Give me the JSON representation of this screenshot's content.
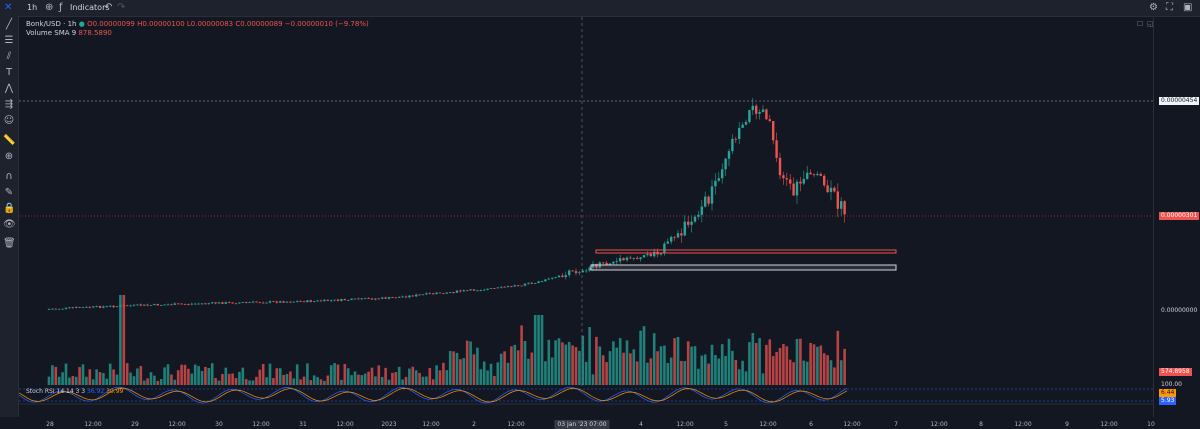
{
  "toolbar": {
    "interval": "1h",
    "indicators_label": "Indicators"
  },
  "legend": {
    "symbol": "Bonk/USD",
    "interval": "1h",
    "ohlc": "O0.00000099  H0.00000100  L0.00000083  C0.00000089  −0.00000010 (−9.78%)",
    "volume_label": "Volume SMA 9",
    "volume_value": "878.5890"
  },
  "rsi": {
    "label": "Stoch RSI 14 14 3 3",
    "k": "36.92",
    "d": "30.99"
  },
  "price_axis": {
    "high_label": "0.00000454",
    "current_label": "0.00000301",
    "zero_label": "0.00000000",
    "volume_label": "574.8958",
    "rsi_top": "100.00",
    "rsi_k": "6.44",
    "rsi_d": "5.93"
  },
  "time_axis": {
    "labels": [
      "28",
      "12:00",
      "29",
      "12:00",
      "30",
      "12:00",
      "31",
      "12:00",
      "2023",
      "12:00",
      "2",
      "12:00",
      "03 Jan '23  07:00",
      "4",
      "12:00",
      "5",
      "12:00",
      "6",
      "12:00",
      "7",
      "12:00",
      "8",
      "12:00",
      "9",
      "12:00",
      "10"
    ]
  },
  "colors": {
    "up": "#26a69a",
    "down": "#ef5350",
    "background": "#131722"
  },
  "chart_data": {
    "type": "candlestick",
    "symbol": "Bonk/USD",
    "interval": "1h",
    "last_close": 8.9e-07,
    "marked_high": 4.54e-06,
    "marked_current": 3.01e-06,
    "volume_last": 574.8958,
    "volume_sma9": 878.589,
    "stoch_rsi": {
      "k": 6.44,
      "d": 5.93
    },
    "zones": [
      {
        "color": "red",
        "note": "resistance box"
      },
      {
        "color": "white",
        "note": "support box"
      }
    ]
  }
}
